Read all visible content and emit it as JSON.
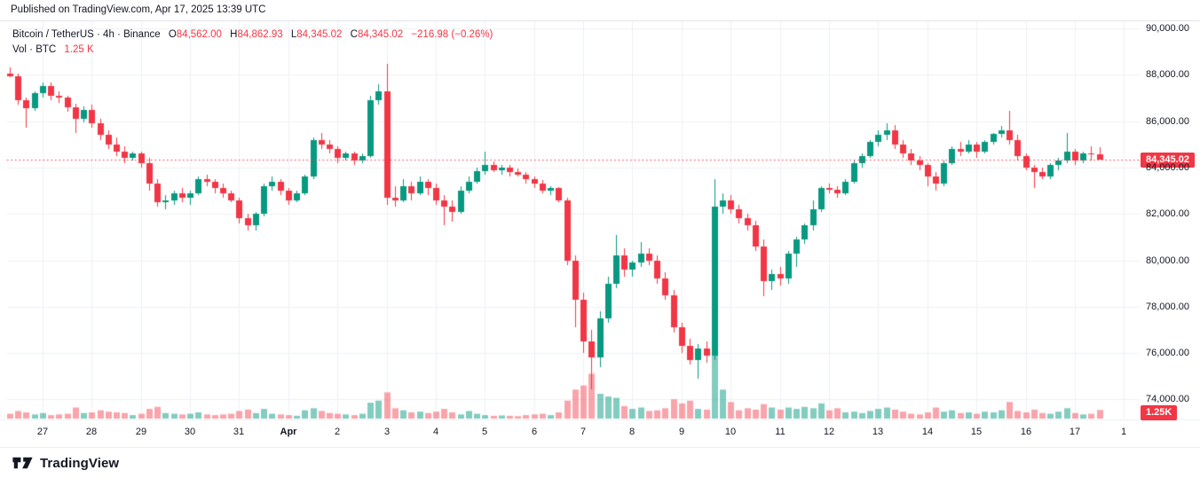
{
  "header": {
    "published_line": "Published on TradingView.com, Apr 17, 2025 13:39 UTC"
  },
  "legend": {
    "title": "Bitcoin / TetherUS · 4h · Binance",
    "o_label": "O",
    "o_value": "84,562.00",
    "h_label": "H",
    "h_value": "84,862.93",
    "l_label": "L",
    "l_value": "84,345.02",
    "c_label": "C",
    "c_value": "84,345.02",
    "change_value": "−216.98 (−0.26%)",
    "vol_label": "Vol · BTC",
    "vol_value": "1.25 K"
  },
  "price_axis": {
    "last_price_badge": "84,345.02",
    "volume_badge": "1.25K",
    "ticks": [
      {
        "label": "90,000.00",
        "price": 90000
      },
      {
        "label": "88,000.00",
        "price": 88000
      },
      {
        "label": "86,000.00",
        "price": 86000
      },
      {
        "label": "84,000.00",
        "price": 84000
      },
      {
        "label": "82,000.00",
        "price": 82000
      },
      {
        "label": "80,000.00",
        "price": 80000
      },
      {
        "label": "78,000.00",
        "price": 78000
      },
      {
        "label": "76,000.00",
        "price": 76000
      },
      {
        "label": "74,000.00",
        "price": 74000
      }
    ]
  },
  "time_axis": {
    "ticks": [
      {
        "label": "27",
        "i": 4
      },
      {
        "label": "28",
        "i": 10
      },
      {
        "label": "29",
        "i": 16
      },
      {
        "label": "30",
        "i": 22
      },
      {
        "label": "31",
        "i": 28
      },
      {
        "label": "Apr",
        "i": 34,
        "bold": true
      },
      {
        "label": "2",
        "i": 40
      },
      {
        "label": "3",
        "i": 46
      },
      {
        "label": "4",
        "i": 52
      },
      {
        "label": "5",
        "i": 58
      },
      {
        "label": "6",
        "i": 64
      },
      {
        "label": "7",
        "i": 70
      },
      {
        "label": "8",
        "i": 76
      },
      {
        "label": "9",
        "i": 82
      },
      {
        "label": "10",
        "i": 88
      },
      {
        "label": "11",
        "i": 94
      },
      {
        "label": "12",
        "i": 100
      },
      {
        "label": "13",
        "i": 106
      },
      {
        "label": "14",
        "i": 112
      },
      {
        "label": "15",
        "i": 118
      },
      {
        "label": "16",
        "i": 124
      },
      {
        "label": "17",
        "i": 130
      },
      {
        "label": "1",
        "i": 136
      }
    ]
  },
  "footer": {
    "brand": "TradingView"
  },
  "colors": {
    "up": "#089981",
    "down": "#f23645",
    "vol_up": "rgba(8,153,129,0.5)",
    "vol_down": "rgba(242,54,69,0.45)",
    "grid": "#eef1f5",
    "axis_text": "#131722",
    "last_price_line": "#f23645"
  },
  "chart_data": {
    "type": "candlestick",
    "symbol": "Bitcoin / TetherUS",
    "exchange": "Binance",
    "interval": "4h",
    "last_price": 84345.02,
    "last_volume_btc": 1250,
    "price_axis_ticks": [
      90000,
      88000,
      86000,
      84000,
      82000,
      80000,
      78000,
      76000,
      74000
    ],
    "volume_max_btc": 13500,
    "candle_format": [
      "time",
      "open",
      "high",
      "low",
      "close",
      "volume_btc"
    ],
    "candles": [
      [
        "03-26 08",
        88050,
        88320,
        87900,
        87950,
        700
      ],
      [
        "03-26 12",
        87950,
        88050,
        86700,
        86900,
        1100
      ],
      [
        "03-26 16",
        86900,
        87000,
        85700,
        86550,
        900
      ],
      [
        "03-26 20",
        86550,
        87300,
        86450,
        87200,
        600
      ],
      [
        "03-27 00",
        87200,
        87650,
        87000,
        87500,
        800
      ],
      [
        "03-27 04",
        87500,
        87650,
        86900,
        87100,
        500
      ],
      [
        "03-27 08",
        87100,
        87300,
        86800,
        87000,
        600
      ],
      [
        "03-27 12",
        87000,
        87100,
        86400,
        86600,
        700
      ],
      [
        "03-27 16",
        86600,
        86750,
        85500,
        86100,
        1600
      ],
      [
        "03-27 20",
        86100,
        86650,
        85950,
        86500,
        800
      ],
      [
        "03-28 00",
        86500,
        86700,
        85700,
        85900,
        900
      ],
      [
        "03-28 04",
        85900,
        86100,
        85200,
        85400,
        1200
      ],
      [
        "03-28 08",
        85400,
        85600,
        84800,
        85000,
        1000
      ],
      [
        "03-28 12",
        85000,
        85300,
        84500,
        84700,
        900
      ],
      [
        "03-28 16",
        84700,
        84900,
        84200,
        84400,
        800
      ],
      [
        "03-28 20",
        84400,
        84700,
        84300,
        84600,
        500
      ],
      [
        "03-29 00",
        84600,
        84700,
        84000,
        84200,
        700
      ],
      [
        "03-29 04",
        84200,
        84400,
        83000,
        83300,
        1400
      ],
      [
        "03-29 08",
        83300,
        83500,
        82300,
        82500,
        1700
      ],
      [
        "03-29 12",
        82500,
        82800,
        82200,
        82600,
        800
      ],
      [
        "03-29 16",
        82600,
        83000,
        82400,
        82900,
        700
      ],
      [
        "03-29 20",
        82900,
        83100,
        82500,
        82700,
        600
      ],
      [
        "03-30 00",
        82700,
        83000,
        82400,
        82900,
        700
      ],
      [
        "03-30 04",
        82900,
        83600,
        82800,
        83500,
        900
      ],
      [
        "03-30 08",
        83500,
        83700,
        83200,
        83400,
        600
      ],
      [
        "03-30 12",
        83400,
        83500,
        82900,
        83100,
        500
      ],
      [
        "03-30 16",
        83100,
        83300,
        82700,
        82900,
        600
      ],
      [
        "03-30 20",
        82900,
        83000,
        82500,
        82600,
        700
      ],
      [
        "03-31 00",
        82600,
        82700,
        81600,
        81800,
        1100
      ],
      [
        "03-31 04",
        81800,
        82000,
        81278,
        81500,
        1300
      ],
      [
        "03-31 08",
        81500,
        82100,
        81300,
        82000,
        800
      ],
      [
        "03-31 12",
        82000,
        83300,
        81900,
        83200,
        1400
      ],
      [
        "03-31 16",
        83200,
        83600,
        83000,
        83400,
        700
      ],
      [
        "03-31 20",
        83400,
        83500,
        82800,
        83000,
        600
      ],
      [
        "04-01 00",
        83000,
        83100,
        82400,
        82600,
        500
      ],
      [
        "04-01 04",
        82600,
        83000,
        82500,
        82900,
        400
      ],
      [
        "04-01 08",
        82900,
        83700,
        82800,
        83600,
        1200
      ],
      [
        "04-01 12",
        83600,
        85300,
        83500,
        85200,
        1500
      ],
      [
        "04-01 16",
        85200,
        85500,
        84800,
        85000,
        1100
      ],
      [
        "04-01 20",
        85000,
        85200,
        84600,
        84800,
        800
      ],
      [
        "04-02 00",
        84800,
        84900,
        84200,
        84400,
        700
      ],
      [
        "04-02 04",
        84400,
        84700,
        84300,
        84600,
        600
      ],
      [
        "04-02 08",
        84600,
        84700,
        84100,
        84300,
        500
      ],
      [
        "04-02 12",
        84300,
        84600,
        84200,
        84500,
        700
      ],
      [
        "04-02 16",
        84500,
        87100,
        84400,
        86900,
        2300
      ],
      [
        "04-02 20",
        86900,
        87600,
        86700,
        87300,
        2600
      ],
      [
        "04-03 00",
        87300,
        88470,
        82400,
        82700,
        3800
      ],
      [
        "04-03 04",
        82700,
        83200,
        82300,
        82600,
        1500
      ],
      [
        "04-03 08",
        82600,
        83500,
        82500,
        83200,
        1200
      ],
      [
        "04-03 12",
        83200,
        83400,
        82600,
        82900,
        900
      ],
      [
        "04-03 16",
        82900,
        83600,
        82800,
        83400,
        1000
      ],
      [
        "04-03 20",
        83400,
        83500,
        82800,
        83100,
        800
      ],
      [
        "04-04 00",
        83100,
        83300,
        82400,
        82600,
        1000
      ],
      [
        "04-04 04",
        82600,
        82800,
        81500,
        82300,
        1400
      ],
      [
        "04-04 08",
        82300,
        82600,
        81660,
        82100,
        900
      ],
      [
        "04-04 12",
        82100,
        83200,
        82000,
        83000,
        600
      ],
      [
        "04-04 16",
        83000,
        83600,
        82900,
        83400,
        1100
      ],
      [
        "04-04 20",
        83400,
        84000,
        83300,
        83850,
        700
      ],
      [
        "04-05 00",
        83850,
        84700,
        83700,
        84100,
        500
      ],
      [
        "04-05 04",
        84100,
        84250,
        83800,
        83900,
        400
      ],
      [
        "04-05 08",
        83900,
        84100,
        83700,
        84000,
        450
      ],
      [
        "04-05 12",
        84000,
        84100,
        83600,
        83800,
        400
      ],
      [
        "04-05 16",
        83800,
        83950,
        83600,
        83700,
        350
      ],
      [
        "04-05 20",
        83700,
        83800,
        83300,
        83500,
        500
      ],
      [
        "04-06 00",
        83500,
        83600,
        83100,
        83300,
        600
      ],
      [
        "04-06 04",
        83300,
        83450,
        82900,
        83000,
        700
      ],
      [
        "04-06 08",
        83000,
        83200,
        82800,
        83100,
        500
      ],
      [
        "04-06 12",
        83100,
        83150,
        82500,
        82600,
        900
      ],
      [
        "04-06 16",
        82600,
        82700,
        79800,
        80000,
        2600
      ],
      [
        "04-06 20",
        80000,
        80200,
        77100,
        78300,
        4200
      ],
      [
        "04-07 00",
        78300,
        78600,
        76000,
        76500,
        4800
      ],
      [
        "04-07 04",
        76500,
        77000,
        74436,
        75800,
        6500
      ],
      [
        "04-07 08",
        75800,
        77800,
        75400,
        77500,
        3600
      ],
      [
        "04-07 12",
        77500,
        79300,
        77300,
        79000,
        3200
      ],
      [
        "04-07 16",
        79000,
        81100,
        78800,
        80200,
        3000
      ],
      [
        "04-07 20",
        80200,
        80500,
        79300,
        79600,
        1800
      ],
      [
        "04-08 00",
        79600,
        80000,
        79300,
        79900,
        1400
      ],
      [
        "04-08 04",
        79900,
        80800,
        79700,
        80300,
        1600
      ],
      [
        "04-08 08",
        80300,
        80500,
        79800,
        80000,
        1100
      ],
      [
        "04-08 12",
        80000,
        80200,
        79000,
        79200,
        1200
      ],
      [
        "04-08 16",
        79200,
        79500,
        78300,
        78500,
        1500
      ],
      [
        "04-08 20",
        78500,
        78700,
        76900,
        77100,
        2800
      ],
      [
        "04-09 00",
        77100,
        77300,
        76000,
        76300,
        2200
      ],
      [
        "04-09 04",
        76300,
        76600,
        75500,
        75700,
        2600
      ],
      [
        "04-09 08",
        75700,
        76400,
        74900,
        76200,
        1400
      ],
      [
        "04-09 12",
        76200,
        76500,
        75600,
        75900,
        1300
      ],
      [
        "04-09 16",
        75900,
        83500,
        75700,
        82300,
        13500
      ],
      [
        "04-09 20",
        82300,
        82900,
        82000,
        82600,
        4200
      ],
      [
        "04-10 00",
        82600,
        82800,
        82000,
        82200,
        2400
      ],
      [
        "04-10 04",
        82200,
        82400,
        81600,
        81800,
        1200
      ],
      [
        "04-10 08",
        81800,
        82000,
        81300,
        81500,
        1500
      ],
      [
        "04-10 12",
        81500,
        81700,
        80400,
        80600,
        1300
      ],
      [
        "04-10 16",
        80600,
        80900,
        78456,
        79100,
        2100
      ],
      [
        "04-10 20",
        79100,
        79600,
        78700,
        79400,
        1600
      ],
      [
        "04-11 00",
        79400,
        79700,
        78900,
        79200,
        1300
      ],
      [
        "04-11 04",
        79200,
        80400,
        79000,
        80300,
        1600
      ],
      [
        "04-11 08",
        80300,
        81000,
        79700,
        80900,
        1400
      ],
      [
        "04-11 12",
        80900,
        81600,
        80700,
        81500,
        1700
      ],
      [
        "04-11 16",
        81500,
        82600,
        81300,
        82200,
        1500
      ],
      [
        "04-11 20",
        82200,
        83200,
        82100,
        83100,
        2200
      ],
      [
        "04-12 00",
        83100,
        83300,
        82900,
        83050,
        1200
      ],
      [
        "04-12 04",
        83050,
        83200,
        82700,
        82900,
        1500
      ],
      [
        "04-12 08",
        82900,
        83500,
        82800,
        83400,
        900
      ],
      [
        "04-12 12",
        83400,
        84300,
        83300,
        84200,
        1000
      ],
      [
        "04-12 16",
        84200,
        84600,
        84000,
        84500,
        800
      ],
      [
        "04-12 20",
        84500,
        85200,
        84400,
        85100,
        1100
      ],
      [
        "04-13 00",
        85100,
        85600,
        84900,
        85400,
        1400
      ],
      [
        "04-13 04",
        85400,
        85900,
        85200,
        85600,
        1600
      ],
      [
        "04-13 08",
        85600,
        85850,
        84800,
        85000,
        1300
      ],
      [
        "04-13 12",
        85000,
        85200,
        84400,
        84600,
        1000
      ],
      [
        "04-13 16",
        84600,
        84800,
        84100,
        84300,
        700
      ],
      [
        "04-13 20",
        84300,
        84500,
        83900,
        84100,
        600
      ],
      [
        "04-14 00",
        84100,
        84200,
        83200,
        83600,
        900
      ],
      [
        "04-14 04",
        83600,
        83800,
        83000,
        83300,
        1600
      ],
      [
        "04-14 08",
        83300,
        84300,
        83200,
        84200,
        1000
      ],
      [
        "04-14 12",
        84200,
        84900,
        84100,
        84800,
        1200
      ],
      [
        "04-14 16",
        84800,
        85100,
        84500,
        84700,
        800
      ],
      [
        "04-14 20",
        84700,
        85200,
        84600,
        85000,
        900
      ],
      [
        "04-15 00",
        85000,
        85100,
        84400,
        84700,
        700
      ],
      [
        "04-15 04",
        84700,
        85200,
        84600,
        85100,
        1000
      ],
      [
        "04-15 08",
        85100,
        85500,
        85000,
        85450,
        900
      ],
      [
        "04-15 12",
        85450,
        85800,
        85300,
        85600,
        1200
      ],
      [
        "04-15 16",
        85600,
        86450,
        85000,
        85200,
        2400
      ],
      [
        "04-15 20",
        85200,
        85400,
        84300,
        84500,
        1100
      ],
      [
        "04-16 00",
        84500,
        84600,
        83900,
        84000,
        900
      ],
      [
        "04-16 04",
        84000,
        84100,
        83112,
        83800,
        1300
      ],
      [
        "04-16 08",
        83800,
        84000,
        83500,
        83600,
        800
      ],
      [
        "04-16 12",
        83600,
        84200,
        83500,
        84100,
        700
      ],
      [
        "04-16 16",
        84100,
        84400,
        83900,
        84300,
        1000
      ],
      [
        "04-16 20",
        84300,
        85500,
        84200,
        84700,
        1500
      ],
      [
        "04-17 00",
        84700,
        84800,
        84100,
        84300,
        800
      ],
      [
        "04-17 04",
        84300,
        84700,
        84200,
        84600,
        600
      ],
      [
        "04-17 08",
        84600,
        84900,
        84300,
        84562,
        700
      ],
      [
        "04-17 12",
        84562,
        84862.93,
        84345.02,
        84345.02,
        1250
      ]
    ]
  }
}
